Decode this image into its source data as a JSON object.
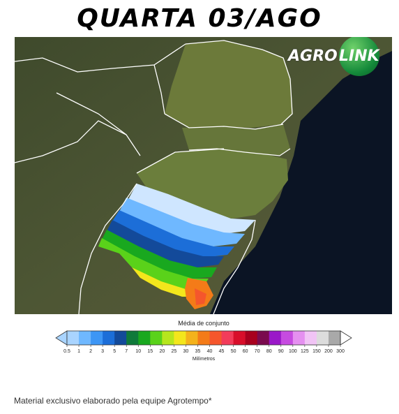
{
  "title": "QUARTA 03/AGO",
  "logo": {
    "part1": "AGRO",
    "part2": "LINK"
  },
  "legend": {
    "title": "Média de conjunto",
    "units": "Milímetros",
    "ticks": [
      "0.5",
      "1",
      "2",
      "3",
      "5",
      "7",
      "10",
      "15",
      "20",
      "25",
      "30",
      "35",
      "40",
      "45",
      "50",
      "60",
      "70",
      "80",
      "90",
      "100",
      "125",
      "150",
      "200",
      "300"
    ],
    "colors": [
      "#a9d4ff",
      "#6fb8ff",
      "#3d96f5",
      "#1c6ed8",
      "#134a9a",
      "#0f7a3a",
      "#19a81f",
      "#5ad21a",
      "#b6e61d",
      "#f3e61c",
      "#f4b21b",
      "#f47b18",
      "#f5562c",
      "#f23c5a",
      "#d80e2a",
      "#a8001e",
      "#7a0b4e",
      "#9a18c8",
      "#c64be0",
      "#e590f0",
      "#f1c4f5",
      "#dcdcdc",
      "#a9a9a9"
    ]
  },
  "footer": "Material exclusivo elaborado pela equipe Agrotempo*"
}
